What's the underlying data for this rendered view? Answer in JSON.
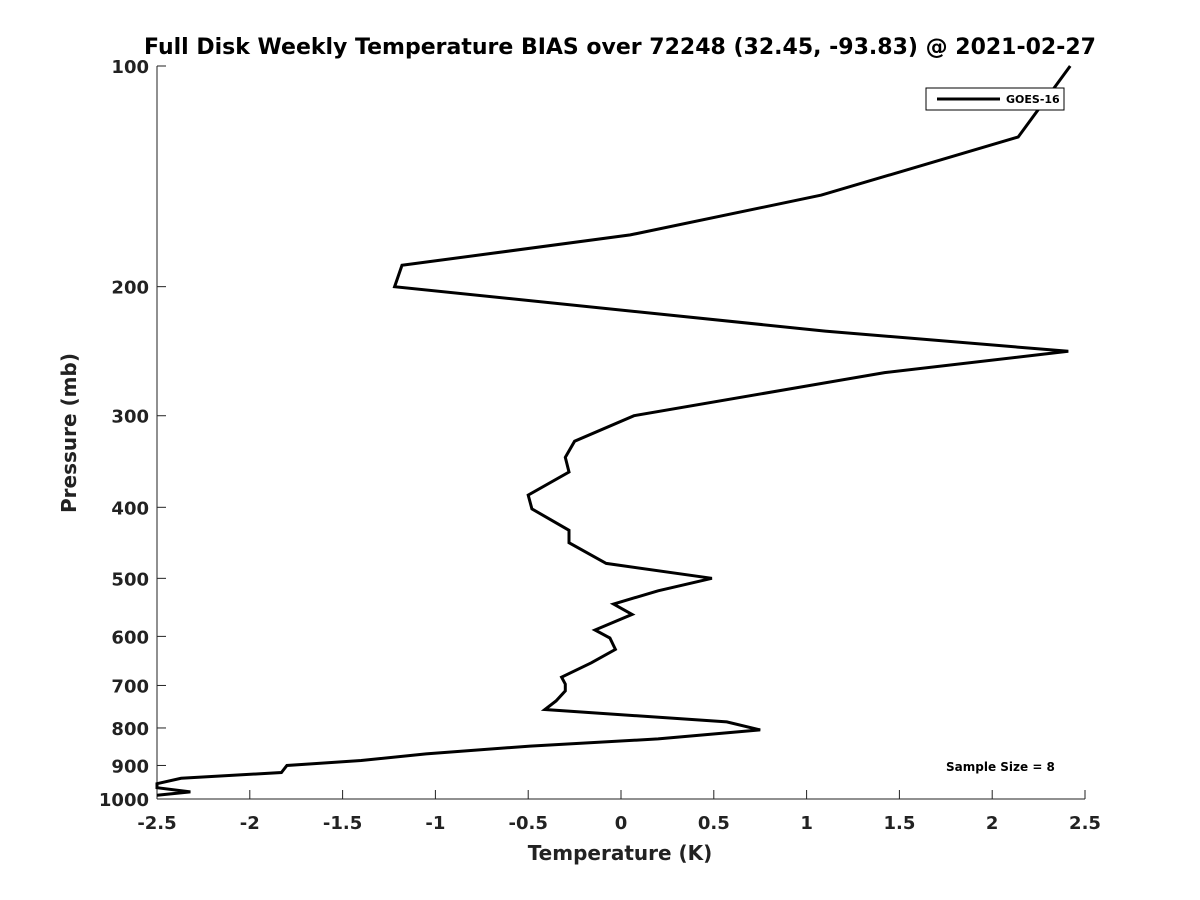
{
  "chart_data": {
    "type": "line",
    "title": "Full Disk Weekly Temperature BIAS over 72248 (32.45, -93.83) @ 2021-02-27",
    "xlabel": "Temperature (K)",
    "ylabel": "Pressure (mb)",
    "xlim": [
      -2.5,
      2.5
    ],
    "ylim": [
      100,
      1000
    ],
    "y_scale": "log",
    "y_reversed": true,
    "grid": false,
    "x_ticks": [
      -2.5,
      -2,
      -1.5,
      -1,
      -0.5,
      0,
      0.5,
      1,
      1.5,
      2,
      2.5
    ],
    "x_tick_labels": [
      "-2.5",
      "-2",
      "-1.5",
      "-1",
      "-0.5",
      "0",
      "0.5",
      "1",
      "1.5",
      "2",
      "2.5"
    ],
    "y_ticks": [
      100,
      200,
      300,
      400,
      500,
      600,
      700,
      800,
      900,
      1000
    ],
    "y_tick_labels": [
      "100",
      "200",
      "300",
      "400",
      "500",
      "600",
      "700",
      "800",
      "900",
      "1000"
    ],
    "legend": {
      "position": "top-right",
      "entries": [
        "GOES-16"
      ]
    },
    "annotation": "Sample Size = 8",
    "series": [
      {
        "name": "GOES-16",
        "color": "#000000",
        "points": [
          [
            2.42,
            100
          ],
          [
            2.14,
            125
          ],
          [
            1.08,
            150
          ],
          [
            0.05,
            170
          ],
          [
            -1.18,
            187
          ],
          [
            -1.22,
            200
          ],
          [
            1.1,
            230
          ],
          [
            2.41,
            245
          ],
          [
            1.42,
            262
          ],
          [
            0.07,
            300
          ],
          [
            -0.25,
            325
          ],
          [
            -0.3,
            342
          ],
          [
            -0.28,
            358
          ],
          [
            -0.5,
            385
          ],
          [
            -0.48,
            402
          ],
          [
            -0.28,
            430
          ],
          [
            -0.28,
            447
          ],
          [
            -0.08,
            477
          ],
          [
            0.49,
            500
          ],
          [
            0.2,
            520
          ],
          [
            -0.04,
            542
          ],
          [
            0.06,
            560
          ],
          [
            -0.14,
            588
          ],
          [
            -0.06,
            603
          ],
          [
            -0.03,
            625
          ],
          [
            -0.16,
            652
          ],
          [
            -0.32,
            682
          ],
          [
            -0.3,
            697
          ],
          [
            -0.3,
            712
          ],
          [
            -0.35,
            735
          ],
          [
            -0.41,
            755
          ],
          [
            0.57,
            785
          ],
          [
            0.75,
            805
          ],
          [
            0.2,
            828
          ],
          [
            -0.49,
            847
          ],
          [
            -1.05,
            868
          ],
          [
            -1.4,
            886
          ],
          [
            -1.8,
            900
          ],
          [
            -1.83,
            920
          ],
          [
            -2.37,
            937
          ],
          [
            -2.5,
            953
          ],
          [
            -2.5,
            965
          ],
          [
            -2.32,
            978
          ],
          [
            -2.5,
            988
          ]
        ]
      }
    ]
  }
}
